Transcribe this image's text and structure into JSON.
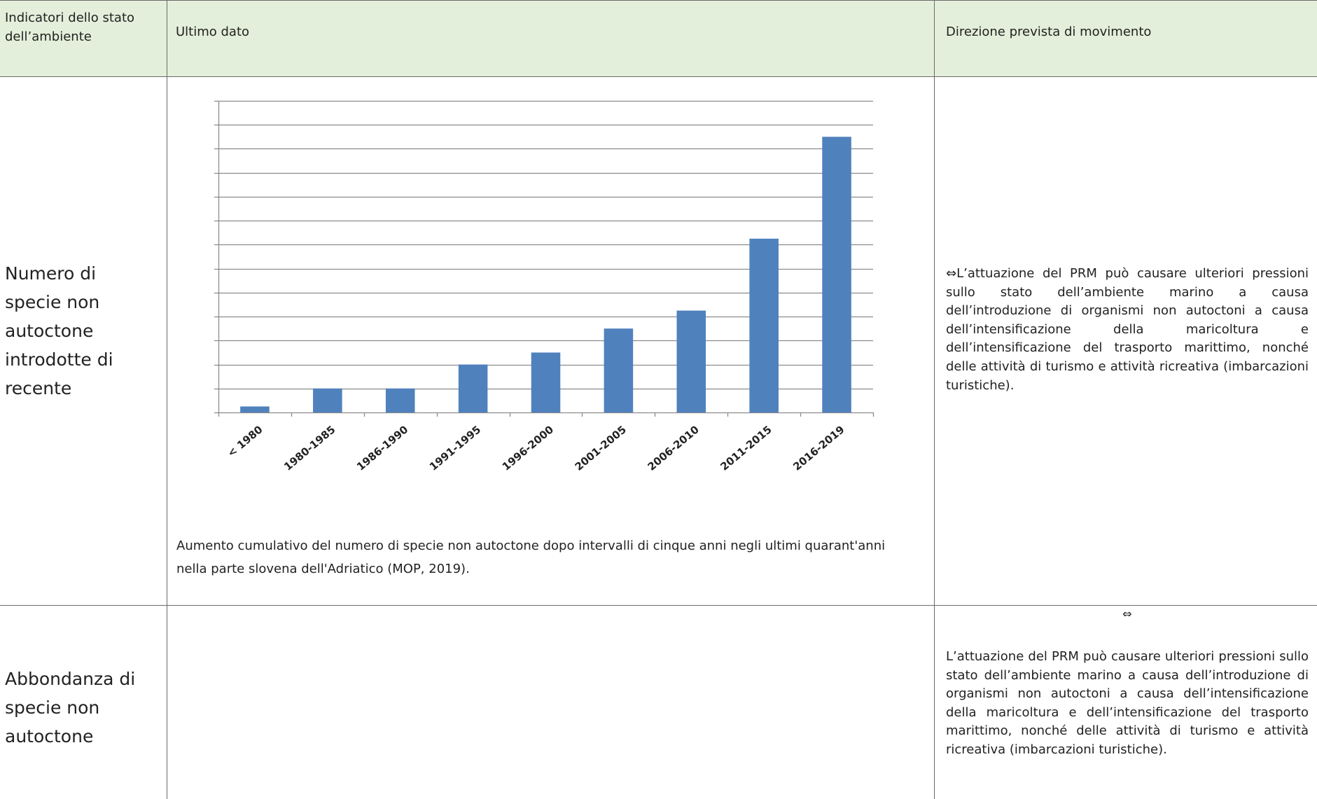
{
  "table": {
    "headers": {
      "col1": "Indicatori dello stato dell’ambiente",
      "col2": "Ultimo dato",
      "col3": "Direzione prevista di movimento"
    },
    "rows": [
      {
        "indicator": "Numero di specie non autoctone introdotte di recente",
        "caption": "Aumento cumulativo del numero di specie non autoctone dopo intervalli di cinque anni negli ultimi quarant'anni nella parte slovena dell'Adriatico (MOP, 2019).",
        "direction_symbol": "⇔",
        "direction": "L’attuazione del PRM può causare ulteriori pressioni sullo stato dell’ambiente marino a causa dell’introduzione di organismi non autoctoni a causa dell’intensificazione della maricoltura e dell’intensificazione del trasporto marittimo, nonché delle attività di turismo e attività ricreativa (imbarcazioni turistiche)."
      },
      {
        "indicator": "Abbondanza di specie non autoctone",
        "direction_symbol": "⇔",
        "direction": "L’attuazione del PRM può causare ulteriori pressioni sullo stato dell’ambiente marino a causa dell’introduzione di organismi non autoctoni a causa dell’intensificazione della maricoltura e dell’intensificazione del trasporto marittimo, nonché delle attività di turismo e attività ricreativa (imbarcazioni turistiche)."
      }
    ]
  },
  "colors": {
    "header_bg": "#e3efda",
    "bar": "#4f81bd",
    "grid": "#8c8c8c"
  },
  "chart_data": {
    "type": "bar",
    "categories": [
      "< 1980",
      "1980-1985",
      "1986-1990",
      "1991-1995",
      "1996-2000",
      "2001-2005",
      "2006-2010",
      "2011-2015",
      "2016-2019"
    ],
    "values": [
      0.5,
      2,
      2,
      4,
      5,
      7,
      8.5,
      14.5,
      23
    ],
    "ylim": [
      0,
      26
    ],
    "grid": true,
    "tick_labels_visible": false,
    "title": "",
    "xlabel": "",
    "ylabel": ""
  }
}
